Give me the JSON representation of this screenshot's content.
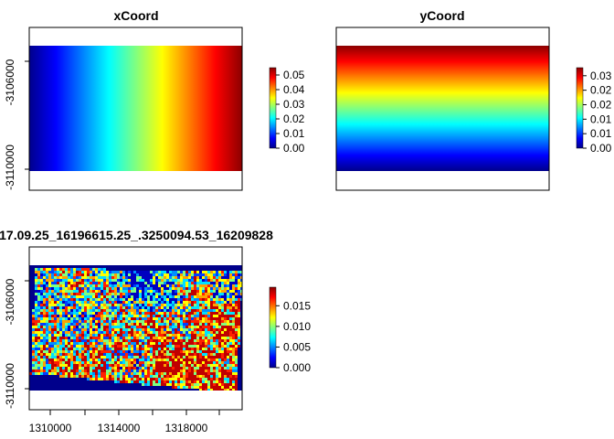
{
  "chart_data": [
    {
      "type": "heatmap",
      "title": "xCoord",
      "xlabel": "",
      "ylabel": "",
      "fill": "horizontal-gradient",
      "y_ticks": [
        "-3106000",
        "-3110000"
      ],
      "x_ticks": [],
      "legend": {
        "placement": "right",
        "min": 0,
        "max": 0.055,
        "ticks": [
          "0.00",
          "0.01",
          "0.02",
          "0.03",
          "0.04",
          "0.05"
        ]
      }
    },
    {
      "type": "heatmap",
      "title": "yCoord",
      "xlabel": "",
      "ylabel": "",
      "fill": "vertical-gradient",
      "y_ticks": [],
      "x_ticks": [],
      "legend": {
        "placement": "right",
        "min": 0,
        "max": 0.035,
        "ticks": [
          "0.00",
          "0.01",
          "0.01",
          "0.02",
          "0.02",
          "0.03"
        ]
      }
    },
    {
      "type": "heatmap",
      "title": "17.09.25_16196615.25_.3250094.53_16209828",
      "xlabel": "",
      "ylabel": "",
      "fill": "noisy-raster",
      "y_ticks": [
        "-3106000",
        "-3110000"
      ],
      "x_ticks": [
        "1310000",
        "1314000",
        "1318000"
      ],
      "legend": {
        "placement": "right",
        "min": 0,
        "max": 0.0195,
        "ticks": [
          "0.000",
          "0.005",
          "0.010",
          "0.015"
        ]
      }
    }
  ],
  "colors": {
    "palette": [
      "#00008b",
      "#0000ff",
      "#0080ff",
      "#00ffff",
      "#80ff80",
      "#ffff00",
      "#ff8000",
      "#ff0000",
      "#8b0000"
    ],
    "background_fill": "#00008b"
  }
}
